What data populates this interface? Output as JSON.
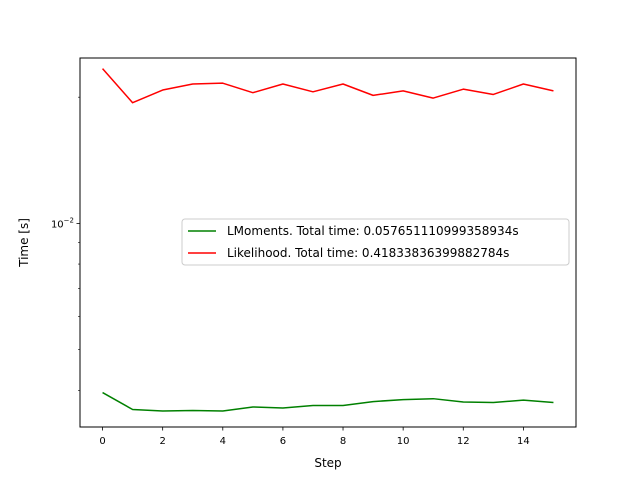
{
  "chart_data": {
    "type": "line",
    "title": "",
    "xlabel": "Step",
    "ylabel": "Time [s]",
    "yscale": "log",
    "xlim": [
      -0.75,
      15.75
    ],
    "ylim": [
      0.00327,
      0.0248
    ],
    "x_ticks": [
      0,
      2,
      4,
      6,
      8,
      10,
      12,
      14
    ],
    "x_tick_labels": [
      "0",
      "2",
      "4",
      "6",
      "8",
      "10",
      "12",
      "14"
    ],
    "y_major_ticks": [
      0.01
    ],
    "y_major_tick_labels": [
      {
        "base": "10",
        "exp": "−2"
      }
    ],
    "y_minor_ticks": [
      0.004,
      0.005,
      0.006,
      0.007,
      0.008,
      0.009,
      0.02
    ],
    "grid": false,
    "legend_position": "center-right",
    "x": [
      0,
      1,
      2,
      3,
      4,
      5,
      6,
      7,
      8,
      9,
      10,
      11,
      12,
      13,
      14,
      15
    ],
    "series": [
      {
        "name": "LMoments. Total time: 0.057651110999358934s",
        "color": "#008000",
        "values": [
          0.00395,
          0.0036,
          0.00357,
          0.00358,
          0.00357,
          0.00365,
          0.00363,
          0.00368,
          0.00368,
          0.00376,
          0.0038,
          0.00382,
          0.00375,
          0.00374,
          0.00379,
          0.00374
        ]
      },
      {
        "name": "Likelihood. Total time: 0.41833836399882784s",
        "color": "#ff0000",
        "values": [
          0.0234,
          0.0194,
          0.0208,
          0.0215,
          0.0216,
          0.0205,
          0.0215,
          0.0206,
          0.0215,
          0.0202,
          0.0207,
          0.0199,
          0.0209,
          0.0203,
          0.0215,
          0.0207
        ]
      }
    ]
  }
}
